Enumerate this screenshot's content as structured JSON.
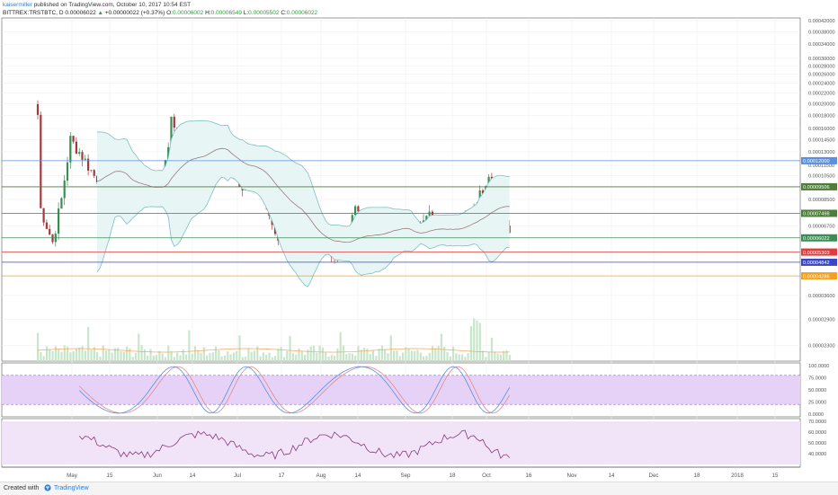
{
  "header": {
    "user": "kaisermiller",
    "published": "published on TradingView.com, October 10, 2017 10:54 EST",
    "symbol": "BITTREX:TRSTBTC, D",
    "last": "0.00006022",
    "change": "+0.00000022 (+0.37%)",
    "o_label": "O:",
    "o_value": "0.00006002",
    "h_label": "H:",
    "h_value": "0.00006549",
    "l_label": "L:",
    "l_value": "0.00005502",
    "c_label": "C:",
    "c_value": "0.00006022"
  },
  "footer": {
    "created": "Created with",
    "brand": "TradingView"
  },
  "colors": {
    "up": "#3a8e54",
    "down": "#a23a3a",
    "bb_line": "#7fbfc5",
    "bb_fill": "#e7f5f4",
    "basis": "#9c7b7b",
    "stoch_k": "#5b8fe0",
    "stoch_d": "#e08a8a",
    "stoch_band": "#e6d2f7",
    "rsi_line": "#8a3a7a",
    "rsi_band": "#f1e3f8",
    "volume": "#c8e6c9",
    "vol_ma": "#f4a55a"
  },
  "chart_data": [
    {
      "type": "candlestick",
      "title": "BITTREX:TRSTBTC, D",
      "x_ticks": [
        "May",
        "15",
        "Jun",
        "14",
        "Jul",
        "17",
        "Aug",
        "14",
        "Sep",
        "18",
        "Oct",
        "16",
        "Nov",
        "14",
        "Dec",
        "18",
        "2018",
        "15"
      ],
      "y_range": [
        2e-05,
        0.00043
      ],
      "y_scale": "log",
      "y_ticks": [
        "0.00042000",
        "0.00038000",
        "0.00034000",
        "0.00030000",
        "0.00028000",
        "0.00026000",
        "0.00024000",
        "0.00022000",
        "0.00020000",
        "0.00018000",
        "0.00016000",
        "0.00014500",
        "0.00013000",
        "0.00011500",
        "0.00010500",
        "0.00008500",
        "0.00006700",
        "0.00004840",
        "0.00003600",
        "0.00002900",
        "0.00002300"
      ],
      "horizontal_lines": [
        {
          "value": "0.00012000",
          "color": "#5b8fe0"
        },
        {
          "value": "0.00009506",
          "color": "#4e7d3a"
        },
        {
          "value": "0.00007498",
          "color": "#4e7d3a"
        },
        {
          "value": "0.00006022",
          "color": "#3a8e54"
        },
        {
          "value": "0.00005303",
          "color": "#e03c3c"
        },
        {
          "value": "0.00004842",
          "color": "#3a46c8"
        },
        {
          "value": "0.00004286",
          "color": "#f4a020"
        }
      ],
      "indicators": [
        "Bollinger Bands (20,2)",
        "Volume"
      ],
      "grid": true
    },
    {
      "type": "line",
      "title": "Stochastic RSI",
      "y_range": [
        0,
        100
      ],
      "y_ticks": [
        "100.0000",
        "75.0000",
        "50.0000",
        "25.0000",
        "0.0000"
      ],
      "band": [
        20,
        80
      ],
      "series_count": 2
    },
    {
      "type": "line",
      "title": "RSI",
      "y_range": [
        30,
        70
      ],
      "y_ticks": [
        "70.0000",
        "60.0000",
        "50.0000",
        "40.0000"
      ],
      "band": [
        30,
        70
      ],
      "series_count": 1
    }
  ]
}
